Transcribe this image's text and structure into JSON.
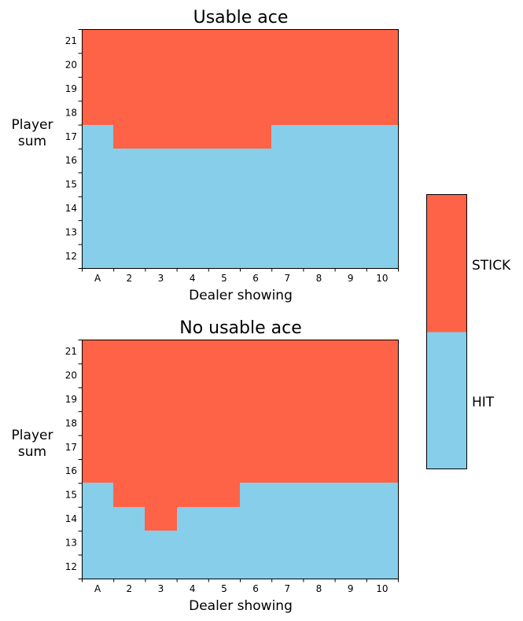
{
  "chart_data": [
    {
      "type": "heatmap",
      "title": "Usable ace",
      "xlabel": "Dealer showing",
      "ylabel": "Player sum",
      "x_categories": [
        "A",
        "2",
        "3",
        "4",
        "5",
        "6",
        "7",
        "8",
        "9",
        "10"
      ],
      "y_categories": [
        "12",
        "13",
        "14",
        "15",
        "16",
        "17",
        "18",
        "19",
        "20",
        "21"
      ],
      "stick_min_sum": [
        18,
        17,
        17,
        17,
        17,
        17,
        18,
        18,
        18,
        18
      ]
    },
    {
      "type": "heatmap",
      "title": "No usable ace",
      "xlabel": "Dealer showing",
      "ylabel": "Player sum",
      "x_categories": [
        "A",
        "2",
        "3",
        "4",
        "5",
        "6",
        "7",
        "8",
        "9",
        "10"
      ],
      "y_categories": [
        "12",
        "13",
        "14",
        "15",
        "16",
        "17",
        "18",
        "19",
        "20",
        "21"
      ],
      "stick_min_sum": [
        16,
        15,
        14,
        15,
        15,
        16,
        16,
        16,
        16,
        16
      ]
    }
  ],
  "legend": [
    {
      "label": "STICK",
      "color": "#ff6347"
    },
    {
      "label": "HIT",
      "color": "#87ceeb"
    }
  ]
}
